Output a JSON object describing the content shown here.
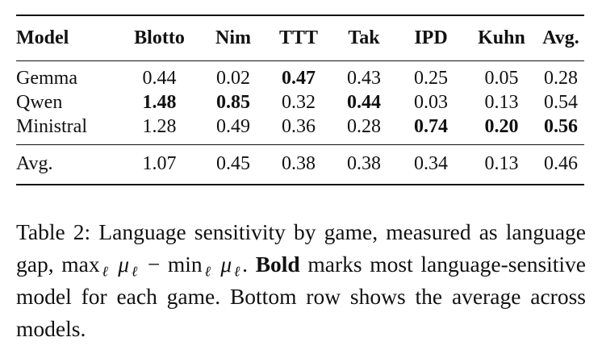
{
  "table": {
    "headers": [
      "Model",
      "Blotto",
      "Nim",
      "TTT",
      "Tak",
      "IPD",
      "Kuhn",
      "Avg."
    ],
    "rows": [
      {
        "model": "Gemma",
        "values": [
          "0.44",
          "0.02",
          "0.47",
          "0.43",
          "0.25",
          "0.05",
          "0.28"
        ],
        "bold": [
          false,
          false,
          true,
          false,
          false,
          false,
          false
        ]
      },
      {
        "model": "Qwen",
        "values": [
          "1.48",
          "0.85",
          "0.32",
          "0.44",
          "0.03",
          "0.13",
          "0.54"
        ],
        "bold": [
          true,
          true,
          false,
          true,
          false,
          false,
          false
        ]
      },
      {
        "model": "Ministral",
        "values": [
          "1.28",
          "0.49",
          "0.36",
          "0.28",
          "0.74",
          "0.20",
          "0.56"
        ],
        "bold": [
          false,
          false,
          false,
          false,
          true,
          true,
          true
        ]
      }
    ],
    "average_row": {
      "label": "Avg.",
      "values": [
        "1.07",
        "0.45",
        "0.38",
        "0.38",
        "0.34",
        "0.13",
        "0.46"
      ]
    }
  },
  "caption": {
    "label": "Table 2:",
    "text_1": "Language sensitivity by game, measured as language gap,",
    "max_op": "max",
    "min_op": "min",
    "sub_l": "ℓ",
    "mu": "μ",
    "minus": "−",
    "bold_word": "Bold",
    "text_2": "marks most language-sensitive model for each game. Bottom row shows the average across models."
  }
}
